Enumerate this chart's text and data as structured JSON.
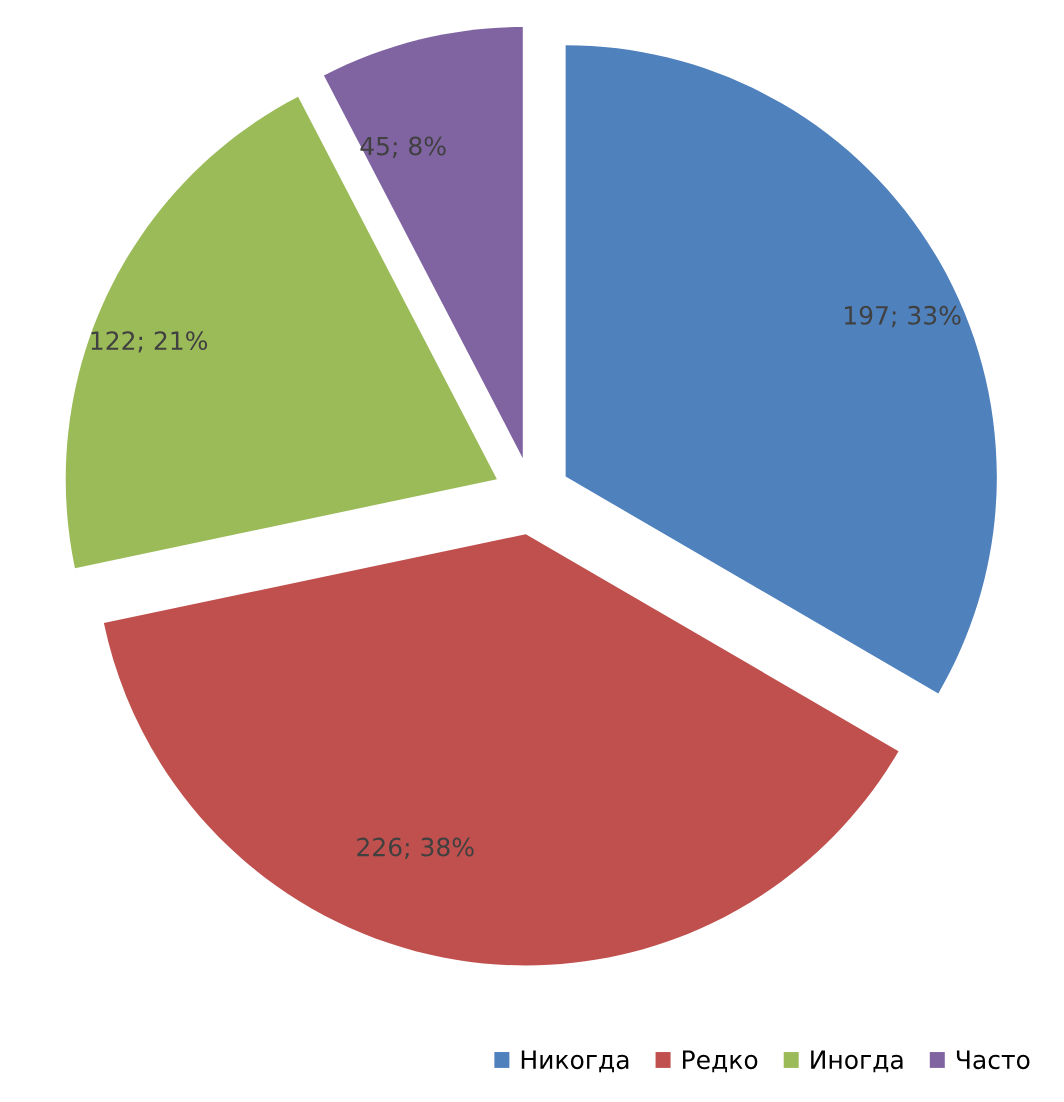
{
  "chart_data": {
    "type": "pie",
    "categories": [
      "Никогда",
      "Редко",
      "Иногда",
      "Часто"
    ],
    "values": [
      197,
      226,
      122,
      45
    ],
    "colors": [
      "#4f81bd",
      "#c0504d",
      "#9bbb59",
      "#8064a2"
    ],
    "value_labels": [
      "197; 33%",
      "226; 38%",
      "122; 21%",
      "45; 8%"
    ],
    "legend": "bottom"
  }
}
